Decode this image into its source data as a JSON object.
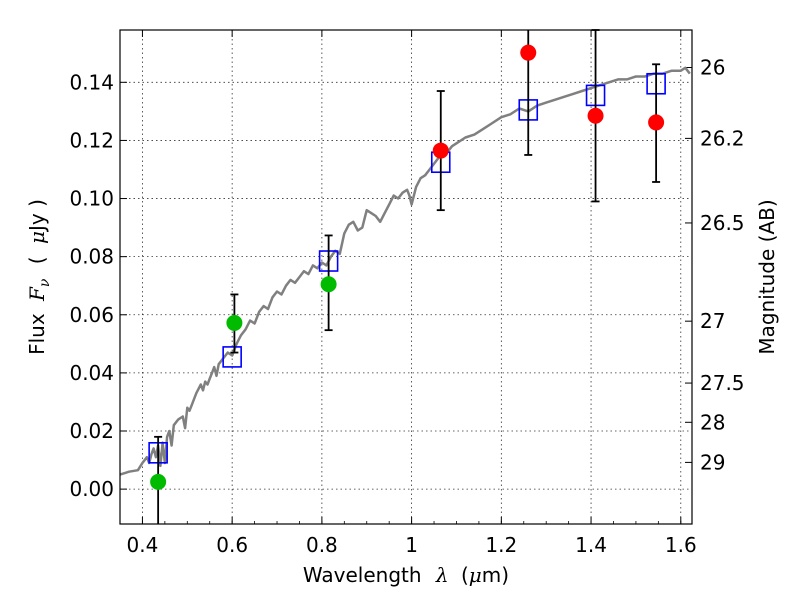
{
  "chart_data": {
    "type": "scatter",
    "title": "",
    "xlabel": {
      "prefix": "Wavelength",
      "symbol": "λ",
      "unit_open": "(",
      "unit_mu": "μ",
      "unit_rest": "m)"
    },
    "ylabel": {
      "prefix": "Flux",
      "symbol": "F",
      "symbol_sub": "ν",
      "unit_open": "(",
      "unit_mu": "μ",
      "unit_rest": "Jy )"
    },
    "y2label": "Magnitude (AB)",
    "xlim": [
      0.35,
      1.625
    ],
    "ylim": [
      -0.012,
      0.158
    ],
    "grid": true,
    "x_ticks": [
      {
        "value": 0.4,
        "label": "0.4"
      },
      {
        "value": 0.6,
        "label": "0.6"
      },
      {
        "value": 0.8,
        "label": "0.8"
      },
      {
        "value": 1.0,
        "label": "1"
      },
      {
        "value": 1.2,
        "label": "1.2"
      },
      {
        "value": 1.4,
        "label": "1.4"
      },
      {
        "value": 1.6,
        "label": "1.6"
      }
    ],
    "y_ticks": [
      {
        "value": 0.0,
        "label": "0.00"
      },
      {
        "value": 0.02,
        "label": "0.02"
      },
      {
        "value": 0.04,
        "label": "0.04"
      },
      {
        "value": 0.06,
        "label": "0.06"
      },
      {
        "value": 0.08,
        "label": "0.08"
      },
      {
        "value": 0.1,
        "label": "0.10"
      },
      {
        "value": 0.12,
        "label": "0.12"
      },
      {
        "value": 0.14,
        "label": "0.14"
      }
    ],
    "magnitude_ticks": [
      {
        "flux": 0.1451,
        "label": "26"
      },
      {
        "flux": 0.1207,
        "label": "26.2"
      },
      {
        "flux": 0.0916,
        "label": "26.5"
      },
      {
        "flux": 0.0578,
        "label": "27"
      },
      {
        "flux": 0.0365,
        "label": "27.5"
      },
      {
        "flux": 0.023,
        "label": "28"
      },
      {
        "flux": 0.0092,
        "label": "29"
      }
    ],
    "series": [
      {
        "name": "model_spectrum",
        "kind": "line",
        "color": "#808080",
        "x": [
          0.35,
          0.37,
          0.39,
          0.4,
          0.41,
          0.415,
          0.42,
          0.425,
          0.43,
          0.435,
          0.44,
          0.445,
          0.45,
          0.455,
          0.46,
          0.465,
          0.47,
          0.48,
          0.49,
          0.495,
          0.5,
          0.505,
          0.51,
          0.52,
          0.53,
          0.535,
          0.54,
          0.545,
          0.55,
          0.555,
          0.56,
          0.565,
          0.57,
          0.58,
          0.59,
          0.6,
          0.61,
          0.62,
          0.63,
          0.64,
          0.65,
          0.66,
          0.67,
          0.68,
          0.69,
          0.7,
          0.71,
          0.72,
          0.73,
          0.74,
          0.75,
          0.76,
          0.77,
          0.78,
          0.79,
          0.8,
          0.81,
          0.82,
          0.83,
          0.84,
          0.85,
          0.86,
          0.87,
          0.88,
          0.89,
          0.9,
          0.91,
          0.92,
          0.93,
          0.94,
          0.95,
          0.96,
          0.97,
          0.98,
          0.99,
          0.995,
          1.0,
          1.01,
          1.02,
          1.03,
          1.04,
          1.05,
          1.06,
          1.07,
          1.08,
          1.09,
          1.1,
          1.12,
          1.14,
          1.16,
          1.18,
          1.2,
          1.22,
          1.24,
          1.26,
          1.28,
          1.3,
          1.32,
          1.34,
          1.36,
          1.38,
          1.4,
          1.42,
          1.44,
          1.46,
          1.48,
          1.5,
          1.52,
          1.54,
          1.56,
          1.58,
          1.6,
          1.61,
          1.62
        ],
        "values": [
          0.005,
          0.006,
          0.0065,
          0.009,
          0.011,
          0.009,
          0.012,
          0.014,
          0.011,
          0.015,
          0.008,
          0.016,
          0.009,
          0.018,
          0.02,
          0.015,
          0.022,
          0.024,
          0.025,
          0.021,
          0.028,
          0.027,
          0.029,
          0.033,
          0.036,
          0.034,
          0.037,
          0.036,
          0.038,
          0.04,
          0.042,
          0.039,
          0.043,
          0.045,
          0.047,
          0.046,
          0.05,
          0.053,
          0.055,
          0.058,
          0.057,
          0.061,
          0.063,
          0.062,
          0.066,
          0.068,
          0.067,
          0.07,
          0.072,
          0.071,
          0.073,
          0.075,
          0.074,
          0.077,
          0.076,
          0.078,
          0.077,
          0.08,
          0.082,
          0.081,
          0.088,
          0.091,
          0.092,
          0.089,
          0.09,
          0.096,
          0.095,
          0.094,
          0.092,
          0.095,
          0.098,
          0.101,
          0.1,
          0.102,
          0.103,
          0.101,
          0.098,
          0.104,
          0.107,
          0.108,
          0.11,
          0.112,
          0.114,
          0.117,
          0.116,
          0.118,
          0.119,
          0.121,
          0.122,
          0.124,
          0.126,
          0.128,
          0.129,
          0.131,
          0.13,
          0.132,
          0.133,
          0.134,
          0.135,
          0.136,
          0.137,
          0.138,
          0.139,
          0.14,
          0.141,
          0.141,
          0.142,
          0.142,
          0.143,
          0.143,
          0.144,
          0.144,
          0.145,
          0.143
        ]
      },
      {
        "name": "synthetic_photometry",
        "kind": "open-square",
        "color": "#0000ff",
        "x": [
          0.435,
          0.6,
          0.815,
          1.065,
          1.26,
          1.41,
          1.545
        ],
        "values": [
          0.0125,
          0.0455,
          0.0785,
          0.1125,
          0.1305,
          0.1355,
          0.1395
        ]
      },
      {
        "name": "observed_optical",
        "kind": "filled-circle",
        "color": "#00bb00",
        "x": [
          0.435,
          0.605,
          0.815
        ],
        "values": [
          0.0025,
          0.0572,
          0.0705
        ],
        "err_low": [
          0.0165,
          0.0102,
          0.0158
        ],
        "err_high": [
          0.0155,
          0.0098,
          0.0168
        ]
      },
      {
        "name": "observed_infrared",
        "kind": "filled-circle",
        "color": "#ff0000",
        "x": [
          1.065,
          1.26,
          1.41,
          1.545
        ],
        "values": [
          0.1165,
          0.1502,
          0.1285,
          0.1262
        ],
        "err_low": [
          0.0205,
          0.0352,
          0.0295,
          0.0205
        ],
        "err_high": [
          0.0205,
          0.0198,
          0.0295,
          0.02
        ]
      }
    ]
  }
}
